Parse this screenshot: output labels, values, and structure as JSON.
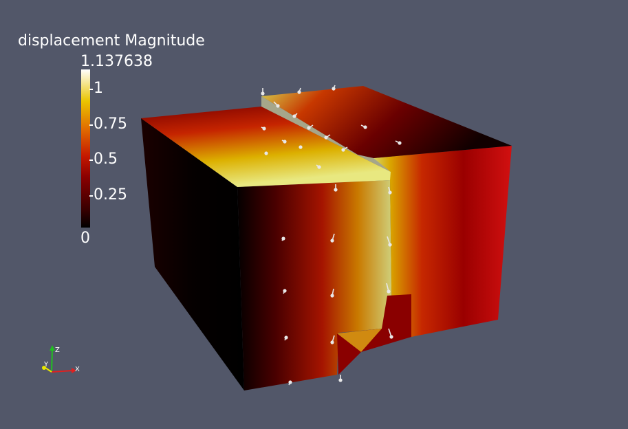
{
  "legend": {
    "title": "displacement Magnitude",
    "max_label": "1.137638",
    "ticks": [
      "1",
      "0.75",
      "0.5",
      "0.25",
      "0"
    ],
    "colormap": [
      "#000000",
      "#8a0000",
      "#c41800",
      "#e06a00",
      "#eac400",
      "#ffffff"
    ]
  },
  "orientation_axes": {
    "x": "X",
    "y": "Y",
    "z": "Z"
  },
  "colors": {
    "background": "#525769",
    "x_axis": "#e02020",
    "y_axis": "#e8e800",
    "z_axis": "#20c020"
  }
}
